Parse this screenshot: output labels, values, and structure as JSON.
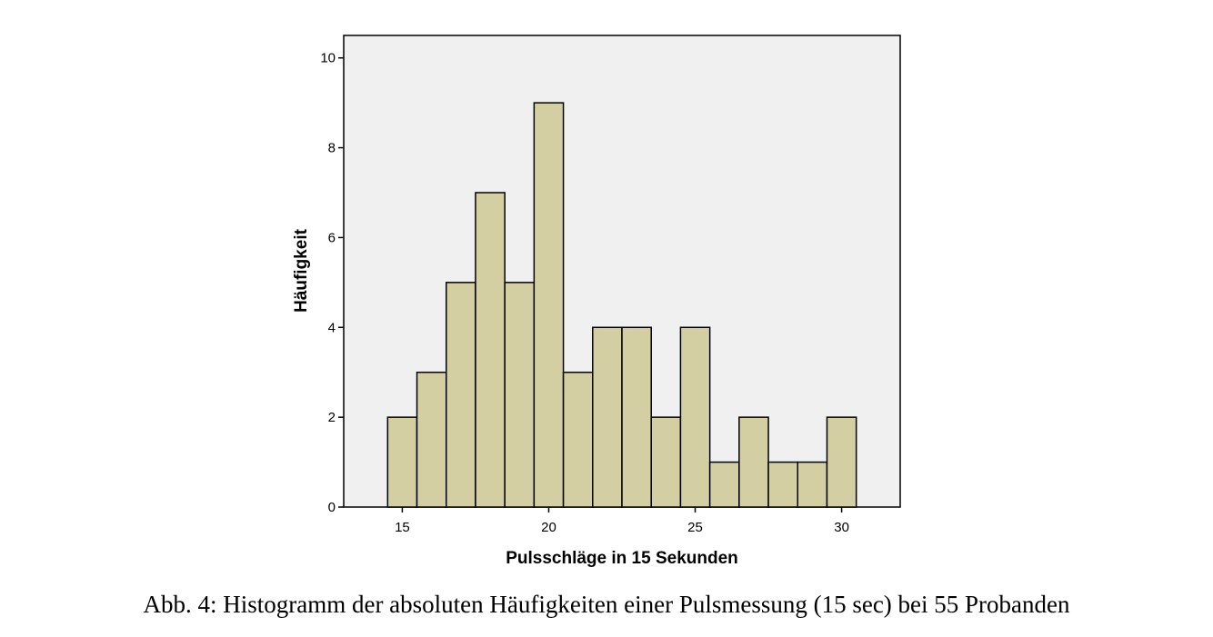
{
  "caption": "Abb. 4: Histogramm der absoluten Häufigkeiten einer Pulsmessung (15 sec) bei 55 Probanden",
  "chart_data": {
    "type": "bar",
    "histogram": true,
    "categories": [
      15,
      16,
      17,
      18,
      19,
      20,
      21,
      22,
      23,
      24,
      25,
      26,
      27,
      28,
      29,
      30
    ],
    "values": [
      2,
      3,
      5,
      7,
      5,
      9,
      3,
      4,
      4,
      2,
      4,
      1,
      2,
      1,
      1,
      2
    ],
    "bin_width": 1,
    "title": "",
    "xlabel": "Pulsschläge in 15 Sekunden",
    "ylabel": "Häufigkeit",
    "xlim": [
      13,
      32
    ],
    "ylim": [
      0,
      10.5
    ],
    "xticks": [
      15,
      20,
      25,
      30
    ],
    "yticks": [
      0,
      2,
      4,
      6,
      8,
      10
    ],
    "grid": false,
    "legend": "none",
    "colors": {
      "plot_background": "#f0f0f0",
      "bar_fill": "#d4cfa2",
      "bar_stroke": "#000000"
    }
  }
}
